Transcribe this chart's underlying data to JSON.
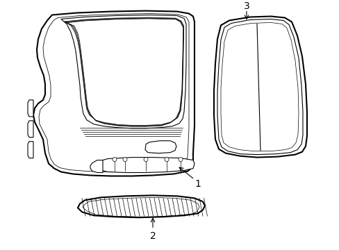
{
  "background_color": "#ffffff",
  "line_color": "#000000",
  "lw_main": 1.5,
  "lw_thin": 0.8,
  "lw_very_thin": 0.5,
  "fig_width": 4.89,
  "fig_height": 3.6,
  "dpi": 100
}
